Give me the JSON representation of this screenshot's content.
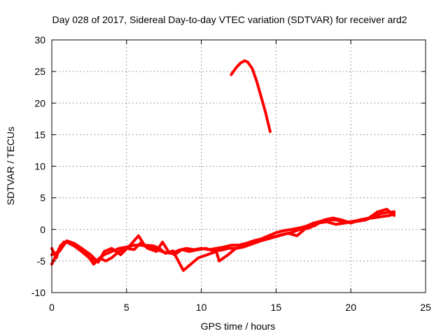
{
  "chart_data": {
    "type": "line",
    "title": "Day 028 of 2017, Sidereal Day-to-day VTEC variation (SDTVAR) for receiver ard2",
    "xlabel": "GPS time / hours",
    "ylabel": "SDTVAR / TECUs",
    "xlim": [
      0,
      25
    ],
    "ylim": [
      -10,
      30
    ],
    "xticks": [
      "0",
      "5",
      "10",
      "15",
      "20",
      "25"
    ],
    "yticks": [
      "-10",
      "-5",
      "0",
      "5",
      "10",
      "15",
      "20",
      "25",
      "30"
    ],
    "grid": true,
    "series_color": "#ff0000",
    "series": [
      {
        "points": [
          [
            0,
            -3
          ],
          [
            0.3,
            -4.5
          ],
          [
            0.5,
            -3
          ],
          [
            0.8,
            -2
          ],
          [
            1.2,
            -2
          ],
          [
            1.6,
            -2.8
          ],
          [
            2,
            -3.5
          ],
          [
            2.5,
            -4.5
          ],
          [
            3,
            -5
          ],
          [
            3.5,
            -4
          ],
          [
            4,
            -3.5
          ],
          [
            4.5,
            -3
          ],
          [
            5,
            -2.8
          ],
          [
            5.5,
            -2.5
          ],
          [
            6,
            -2.5
          ],
          [
            6.5,
            -2.8
          ],
          [
            7,
            -3.2
          ],
          [
            7.5,
            -3.6
          ],
          [
            8,
            -3.8
          ],
          [
            8.5,
            -3.3
          ],
          [
            9,
            -3
          ],
          [
            9.5,
            -3.2
          ],
          [
            10,
            -3
          ],
          [
            10.5,
            -3.2
          ],
          [
            11,
            -3
          ],
          [
            11.5,
            -2.8
          ],
          [
            12,
            -2.5
          ],
          [
            12.5,
            -2.5
          ],
          [
            13,
            -2.2
          ],
          [
            13.5,
            -1.8
          ],
          [
            14,
            -1.5
          ],
          [
            14.5,
            -1
          ],
          [
            15,
            -0.5
          ],
          [
            15.5,
            -0.2
          ],
          [
            16,
            0
          ],
          [
            16.5,
            0.2
          ],
          [
            17,
            0.5
          ],
          [
            17.5,
            1
          ],
          [
            18,
            1.3
          ],
          [
            18.5,
            1.5
          ],
          [
            19,
            1.5
          ],
          [
            19.5,
            1.2
          ],
          [
            20,
            1.2
          ],
          [
            20.5,
            1.3
          ],
          [
            21,
            1.5
          ],
          [
            21.5,
            2
          ],
          [
            22,
            2.5
          ],
          [
            22.5,
            2.7
          ],
          [
            22.9,
            2.8
          ]
        ]
      },
      {
        "points": [
          [
            0,
            -5.5
          ],
          [
            0.3,
            -4
          ],
          [
            0.6,
            -2.5
          ],
          [
            1,
            -2
          ],
          [
            1.4,
            -2.5
          ],
          [
            1.8,
            -3
          ],
          [
            2.3,
            -3.8
          ],
          [
            2.8,
            -5.5
          ],
          [
            3.2,
            -4.5
          ],
          [
            3.6,
            -5
          ],
          [
            4,
            -4.5
          ],
          [
            4.5,
            -3.5
          ],
          [
            5,
            -3
          ],
          [
            5.5,
            -3.2
          ],
          [
            6,
            -2
          ],
          [
            6.4,
            -3
          ],
          [
            7,
            -3.5
          ],
          [
            7.4,
            -2
          ],
          [
            7.8,
            -3.5
          ],
          [
            8.2,
            -4
          ],
          [
            8.7,
            -3.2
          ],
          [
            9.2,
            -3.5
          ],
          [
            9.8,
            -3.2
          ],
          [
            10.3,
            -3
          ],
          [
            10.8,
            -3.4
          ],
          [
            11.3,
            -3.3
          ],
          [
            11.8,
            -3
          ],
          [
            12.4,
            -3
          ],
          [
            13,
            -2.5
          ],
          [
            13.6,
            -2
          ],
          [
            14.2,
            -1.5
          ],
          [
            14.8,
            -1.2
          ],
          [
            15.4,
            -0.8
          ],
          [
            16,
            -0.5
          ],
          [
            16.6,
            0
          ],
          [
            17.2,
            0.2
          ],
          [
            17.8,
            1
          ],
          [
            18.4,
            1.2
          ],
          [
            19,
            0.8
          ],
          [
            19.6,
            1
          ],
          [
            20.2,
            1.3
          ],
          [
            20.8,
            1.6
          ],
          [
            21.4,
            1.8
          ],
          [
            22,
            2
          ],
          [
            22.6,
            2.2
          ],
          [
            22.9,
            2.5
          ]
        ]
      },
      {
        "points": [
          [
            0,
            -4
          ],
          [
            0.5,
            -3.5
          ],
          [
            1,
            -1.8
          ],
          [
            1.5,
            -2.2
          ],
          [
            2,
            -3
          ],
          [
            2.6,
            -4
          ],
          [
            3.1,
            -5.2
          ],
          [
            3.5,
            -3.5
          ],
          [
            4,
            -3
          ],
          [
            4.6,
            -4
          ],
          [
            5.2,
            -2.6
          ],
          [
            5.8,
            -1
          ],
          [
            6.2,
            -2.5
          ],
          [
            6.8,
            -2.6
          ],
          [
            7.2,
            -3
          ],
          [
            7.6,
            -3.8
          ],
          [
            8.1,
            -3.4
          ],
          [
            8.8,
            -6.5
          ],
          [
            9.3,
            -5.5
          ],
          [
            9.8,
            -4.5
          ],
          [
            10.4,
            -4
          ],
          [
            11,
            -3.5
          ],
          [
            11.2,
            -5
          ],
          [
            11.8,
            -4
          ],
          [
            12.3,
            -3
          ],
          [
            12.8,
            -2.8
          ],
          [
            13.4,
            -2.3
          ],
          [
            14,
            -1.8
          ],
          [
            14.6,
            -1.4
          ],
          [
            15.2,
            -1
          ],
          [
            15.8,
            -0.6
          ],
          [
            16.4,
            -1
          ],
          [
            17,
            0.2
          ],
          [
            17.6,
            0.6
          ],
          [
            18.2,
            1.5
          ],
          [
            18.8,
            1.8
          ],
          [
            19.4,
            1.5
          ],
          [
            20,
            1
          ],
          [
            20.6,
            1.5
          ],
          [
            21.2,
            1.8
          ],
          [
            21.8,
            2.8
          ],
          [
            22.4,
            3.2
          ],
          [
            22.9,
            2.2
          ]
        ]
      },
      {
        "points": [
          [
            12,
            24.5
          ],
          [
            12.3,
            25.5
          ],
          [
            12.6,
            26.3
          ],
          [
            12.9,
            26.7
          ],
          [
            13.1,
            26.5
          ],
          [
            13.4,
            25.5
          ],
          [
            13.7,
            23.5
          ],
          [
            14,
            21
          ],
          [
            14.3,
            18.5
          ],
          [
            14.6,
            15.5
          ]
        ]
      }
    ]
  }
}
